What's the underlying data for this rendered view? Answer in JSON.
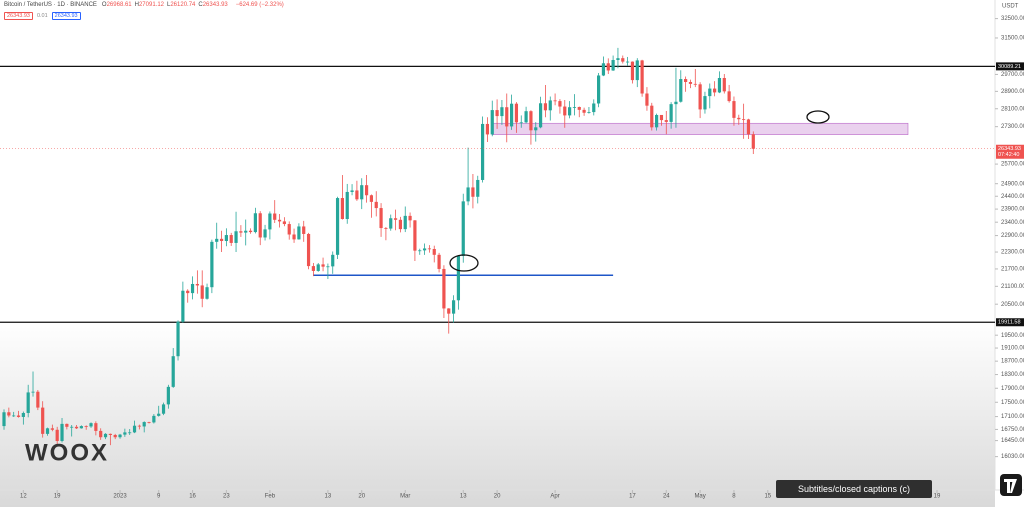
{
  "chart_data": {
    "type": "candlestick",
    "symbol": "Bitcoin / TetherUS · 1D · BINANCE",
    "ohlc_keys": [
      "O",
      "H",
      "L",
      "C"
    ],
    "change": "−624.69 (−2.32%)",
    "spread": "0.01",
    "currency": "USDT",
    "countdown": "07:42:40",
    "up_color": "#26a69a",
    "down_color": "#ef5350",
    "log_scale": true,
    "grid": false,
    "ylim": [
      15190,
      33490
    ],
    "xlim": [
      -0.83,
      205
    ],
    "yticks": [
      {
        "value": 32500,
        "label": "32500.00"
      },
      {
        "value": 31500,
        "label": "31500.00"
      },
      {
        "value": 29700,
        "label": "29700.00"
      },
      {
        "value": 28900,
        "label": "28900.00"
      },
      {
        "value": 28100,
        "label": "28100.00"
      },
      {
        "value": 27300,
        "label": "27300.00"
      },
      {
        "value": 25700,
        "label": "25700.00"
      },
      {
        "value": 24900,
        "label": "24900.00"
      },
      {
        "value": 24400,
        "label": "24400.00"
      },
      {
        "value": 23900,
        "label": "23900.00"
      },
      {
        "value": 23400,
        "label": "23400.00"
      },
      {
        "value": 22900,
        "label": "22900.00"
      },
      {
        "value": 22300,
        "label": "22300.00"
      },
      {
        "value": 21700,
        "label": "21700.00"
      },
      {
        "value": 21100,
        "label": "21100.00"
      },
      {
        "value": 20500,
        "label": "20500.00"
      },
      {
        "value": 19500,
        "label": "19500.00"
      },
      {
        "value": 19100,
        "label": "19100.00"
      },
      {
        "value": 18700,
        "label": "18700.00"
      },
      {
        "value": 18300,
        "label": "18300.00"
      },
      {
        "value": 17900,
        "label": "17900.00"
      },
      {
        "value": 17500,
        "label": "17500.00"
      },
      {
        "value": 17100,
        "label": "17100.00"
      },
      {
        "value": 16750,
        "label": "16750.00"
      },
      {
        "value": 16450,
        "label": "16450.00"
      },
      {
        "value": 16030,
        "label": "16030.00"
      }
    ],
    "xticks": [
      {
        "value": 4,
        "label": "12"
      },
      {
        "value": 11,
        "label": "19"
      },
      {
        "value": 24,
        "label": "2023"
      },
      {
        "value": 32,
        "label": "9"
      },
      {
        "value": 39,
        "label": "16"
      },
      {
        "value": 46,
        "label": "23"
      },
      {
        "value": 55,
        "label": "Feb"
      },
      {
        "value": 67,
        "label": "13"
      },
      {
        "value": 74,
        "label": "20"
      },
      {
        "value": 83,
        "label": "Mar"
      },
      {
        "value": 95,
        "label": "13"
      },
      {
        "value": 102,
        "label": "20"
      },
      {
        "value": 114,
        "label": "Apr"
      },
      {
        "value": 130,
        "label": "17"
      },
      {
        "value": 137,
        "label": "24"
      },
      {
        "value": 144,
        "label": "May"
      },
      {
        "value": 151,
        "label": "8"
      },
      {
        "value": 158,
        "label": "15"
      },
      {
        "value": 193,
        "label": "19"
      }
    ],
    "levels": [
      30089.21,
      19911.58
    ],
    "support_line": {
      "value": 21480,
      "from": 64,
      "to": 126
    },
    "zone": {
      "low": 26950,
      "high": 27450,
      "from": 101,
      "to": 187
    },
    "candles": [
      [
        16840,
        17300,
        16740,
        17220
      ],
      [
        17220,
        17350,
        17080,
        17130
      ],
      [
        17130,
        17230,
        17090,
        17130
      ],
      [
        17130,
        17260,
        17070,
        17090
      ],
      [
        17090,
        17240,
        16880,
        17200
      ],
      [
        17200,
        18000,
        17080,
        17780
      ],
      [
        17780,
        18390,
        17660,
        17800
      ],
      [
        17800,
        17850,
        17280,
        17350
      ],
      [
        17350,
        17530,
        16530,
        16630
      ],
      [
        16630,
        16800,
        16580,
        16780
      ],
      [
        16780,
        16880,
        16700,
        16740
      ],
      [
        16740,
        16820,
        16300,
        16440
      ],
      [
        16440,
        17060,
        16400,
        16900
      ],
      [
        16900,
        16910,
        16750,
        16820
      ],
      [
        16820,
        16870,
        16560,
        16820
      ],
      [
        16820,
        16870,
        16760,
        16780
      ],
      [
        16780,
        16860,
        16770,
        16840
      ],
      [
        16840,
        16860,
        16740,
        16830
      ],
      [
        16830,
        16940,
        16790,
        16920
      ],
      [
        16920,
        16970,
        16590,
        16710
      ],
      [
        16710,
        16780,
        16470,
        16540
      ],
      [
        16540,
        16650,
        16490,
        16630
      ],
      [
        16630,
        16640,
        16330,
        16600
      ],
      [
        16600,
        16630,
        16490,
        16540
      ],
      [
        16540,
        16630,
        16500,
        16610
      ],
      [
        16610,
        16770,
        16550,
        16670
      ],
      [
        16670,
        16760,
        16600,
        16670
      ],
      [
        16670,
        16990,
        16650,
        16850
      ],
      [
        16850,
        16880,
        16750,
        16830
      ],
      [
        16830,
        16970,
        16670,
        16950
      ],
      [
        16950,
        16960,
        16910,
        16940
      ],
      [
        16940,
        17170,
        16910,
        17120
      ],
      [
        17120,
        17400,
        17100,
        17180
      ],
      [
        17180,
        17490,
        17140,
        17440
      ],
      [
        17440,
        18000,
        17320,
        17940
      ],
      [
        17940,
        19100,
        17910,
        18850
      ],
      [
        18850,
        19970,
        18720,
        19930
      ],
      [
        19930,
        21260,
        19890,
        20950
      ],
      [
        20950,
        21000,
        20550,
        20870
      ],
      [
        20870,
        21440,
        20660,
        21180
      ],
      [
        21180,
        21650,
        20850,
        21130
      ],
      [
        21130,
        21650,
        20400,
        20680
      ],
      [
        20680,
        21190,
        20650,
        21070
      ],
      [
        21070,
        22750,
        20870,
        22670
      ],
      [
        22670,
        23380,
        22420,
        22780
      ],
      [
        22780,
        23080,
        22300,
        22700
      ],
      [
        22700,
        23170,
        22510,
        22920
      ],
      [
        22920,
        23000,
        22520,
        22630
      ],
      [
        22630,
        23800,
        22300,
        23060
      ],
      [
        23060,
        23290,
        22850,
        23010
      ],
      [
        23010,
        23500,
        22540,
        23080
      ],
      [
        23080,
        23170,
        22970,
        23030
      ],
      [
        23030,
        23950,
        22980,
        23740
      ],
      [
        23740,
        23820,
        22550,
        22830
      ],
      [
        22830,
        23300,
        22720,
        23130
      ],
      [
        23130,
        23810,
        22760,
        23730
      ],
      [
        23730,
        24250,
        23370,
        23490
      ],
      [
        23490,
        23710,
        23200,
        23430
      ],
      [
        23430,
        23590,
        23250,
        23330
      ],
      [
        23330,
        23430,
        22750,
        22940
      ],
      [
        22940,
        23160,
        22630,
        22760
      ],
      [
        22760,
        23360,
        22750,
        23240
      ],
      [
        23240,
        23450,
        22670,
        22960
      ],
      [
        22960,
        23000,
        21690,
        21800
      ],
      [
        21800,
        21910,
        21450,
        21630
      ],
      [
        21630,
        21910,
        21600,
        21860
      ],
      [
        21860,
        22100,
        21620,
        21780
      ],
      [
        21780,
        21890,
        21350,
        21790
      ],
      [
        21790,
        22320,
        21530,
        22200
      ],
      [
        22200,
        24380,
        22050,
        24330
      ],
      [
        24330,
        25250,
        23500,
        23520
      ],
      [
        23520,
        24890,
        23340,
        24570
      ],
      [
        24570,
        24880,
        24440,
        24630
      ],
      [
        24630,
        25020,
        24220,
        24280
      ],
      [
        24280,
        25120,
        23900,
        24840
      ],
      [
        24840,
        25250,
        24150,
        24440
      ],
      [
        24440,
        24470,
        23570,
        24180
      ],
      [
        24180,
        24600,
        23620,
        23940
      ],
      [
        23940,
        24130,
        22850,
        23180
      ],
      [
        23180,
        23220,
        22730,
        23160
      ],
      [
        23160,
        23690,
        23080,
        23550
      ],
      [
        23550,
        23880,
        23100,
        23490
      ],
      [
        23490,
        23600,
        23020,
        23140
      ],
      [
        23140,
        24000,
        23030,
        23640
      ],
      [
        23640,
        23770,
        23200,
        23470
      ],
      [
        23470,
        23480,
        21980,
        22350
      ],
      [
        22350,
        22420,
        22200,
        22360
      ],
      [
        22360,
        22610,
        22200,
        22430
      ],
      [
        22430,
        22550,
        22280,
        22410
      ],
      [
        22410,
        22530,
        21930,
        22200
      ],
      [
        22200,
        22270,
        21580,
        21700
      ],
      [
        21700,
        21830,
        20050,
        20360
      ],
      [
        20360,
        20370,
        19550,
        20190
      ],
      [
        20190,
        20800,
        19900,
        20630
      ],
      [
        20630,
        22190,
        20320,
        22160
      ],
      [
        22160,
        24500,
        21920,
        24200
      ],
      [
        24200,
        26390,
        24050,
        24750
      ],
      [
        24750,
        25290,
        23930,
        24380
      ],
      [
        24380,
        25220,
        24120,
        25050
      ],
      [
        25050,
        27750,
        24950,
        27420
      ],
      [
        27420,
        27720,
        26630,
        26960
      ],
      [
        26960,
        28470,
        26880,
        28040
      ],
      [
        28040,
        28530,
        27200,
        27770
      ],
      [
        27770,
        28500,
        27380,
        28170
      ],
      [
        28170,
        28800,
        26620,
        27310
      ],
      [
        27310,
        28750,
        27160,
        28330
      ],
      [
        28330,
        28400,
        27030,
        27490
      ],
      [
        27490,
        27800,
        27250,
        27490
      ],
      [
        27490,
        28190,
        27440,
        27990
      ],
      [
        27990,
        28030,
        26520,
        27140
      ],
      [
        27140,
        27500,
        26650,
        27270
      ],
      [
        27270,
        28650,
        27230,
        28350
      ],
      [
        28350,
        29200,
        27720,
        28030
      ],
      [
        28030,
        28660,
        27570,
        28480
      ],
      [
        28480,
        28800,
        28260,
        28450
      ],
      [
        28450,
        28540,
        27880,
        28200
      ],
      [
        28200,
        28500,
        27250,
        27800
      ],
      [
        27800,
        28450,
        27670,
        28170
      ],
      [
        28170,
        28770,
        27800,
        28180
      ],
      [
        28180,
        28200,
        27720,
        28050
      ],
      [
        28050,
        28150,
        27780,
        27920
      ],
      [
        27920,
        28180,
        27880,
        27950
      ],
      [
        27950,
        28530,
        27800,
        28340
      ],
      [
        28340,
        29770,
        28170,
        29650
      ],
      [
        29650,
        30570,
        29620,
        30240
      ],
      [
        30240,
        30480,
        29720,
        29890
      ],
      [
        29890,
        30620,
        29870,
        30400
      ],
      [
        30400,
        31000,
        30000,
        30490
      ],
      [
        30490,
        30620,
        30230,
        30320
      ],
      [
        30320,
        30550,
        30120,
        30320
      ],
      [
        30320,
        30330,
        29270,
        29430
      ],
      [
        29430,
        30490,
        29100,
        30380
      ],
      [
        30380,
        30410,
        28650,
        28800
      ],
      [
        28800,
        29100,
        28010,
        28240
      ],
      [
        28240,
        28370,
        27130,
        27270
      ],
      [
        27270,
        27880,
        27130,
        27820
      ],
      [
        27820,
        27820,
        27340,
        27590
      ],
      [
        27590,
        28000,
        26970,
        27510
      ],
      [
        27510,
        28400,
        27210,
        28310
      ],
      [
        28310,
        30020,
        27250,
        28420
      ],
      [
        28420,
        29900,
        28380,
        29480
      ],
      [
        29480,
        29600,
        28880,
        29340
      ],
      [
        29340,
        29450,
        29050,
        29250
      ],
      [
        29250,
        29960,
        29100,
        29230
      ],
      [
        29230,
        29330,
        27680,
        28070
      ],
      [
        28070,
        28880,
        27880,
        28680
      ],
      [
        28680,
        29270,
        28120,
        29030
      ],
      [
        29030,
        29380,
        28670,
        28850
      ],
      [
        28850,
        29850,
        28820,
        29530
      ],
      [
        29530,
        29720,
        28800,
        28900
      ],
      [
        28900,
        29200,
        28380,
        28450
      ],
      [
        28450,
        28660,
        27340,
        27690
      ],
      [
        27690,
        27830,
        27380,
        27630
      ],
      [
        27630,
        28330,
        26770,
        27620
      ],
      [
        27620,
        27650,
        26760,
        26968.61
      ],
      [
        26968.61,
        27091.12,
        26120.74,
        26343.93
      ]
    ]
  },
  "overlay": {
    "logo": "WOOX",
    "tooltip": "Subtitles/closed captions (c)"
  }
}
